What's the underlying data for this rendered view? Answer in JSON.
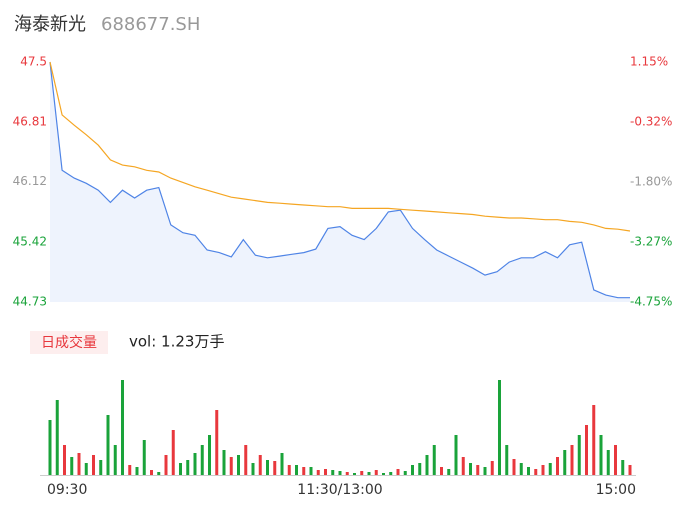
{
  "header": {
    "title": "海泰新光",
    "code": "688677.SH"
  },
  "chart_data": [
    {
      "type": "line",
      "xlim": [
        0,
        240
      ],
      "ylim": [
        44.73,
        47.5
      ],
      "y2lim": [
        -4.75,
        1.15
      ],
      "yticks": [
        47.5,
        46.81,
        46.12,
        45.42,
        44.73
      ],
      "ytick_colors": [
        "#e8383d",
        "#e8383d",
        "#999999",
        "#1aa33a",
        "#1aa33a"
      ],
      "y2ticks": [
        {
          "value": 1.15,
          "label": "1.15%"
        },
        {
          "value": -0.32,
          "label": "-0.32%"
        },
        {
          "value": -1.8,
          "label": "-1.80%"
        },
        {
          "value": -3.27,
          "label": "-3.27%"
        },
        {
          "value": -4.75,
          "label": "-4.75%"
        }
      ],
      "x": [
        0,
        5,
        10,
        15,
        20,
        25,
        30,
        35,
        40,
        45,
        50,
        55,
        60,
        65,
        70,
        75,
        80,
        85,
        90,
        95,
        100,
        105,
        110,
        115,
        120,
        125,
        130,
        135,
        140,
        145,
        150,
        155,
        160,
        165,
        170,
        175,
        180,
        185,
        190,
        195,
        200,
        205,
        210,
        215,
        220,
        225,
        230,
        235,
        240
      ],
      "series": [
        {
          "color": "#4f84e6",
          "fill": "#eef3fd",
          "values": [
            47.5,
            46.25,
            46.16,
            46.1,
            46.02,
            45.88,
            46.02,
            45.93,
            46.02,
            46.05,
            45.62,
            45.53,
            45.5,
            45.33,
            45.3,
            45.25,
            45.45,
            45.27,
            45.24,
            45.26,
            45.28,
            45.3,
            45.34,
            45.58,
            45.6,
            45.5,
            45.45,
            45.58,
            45.77,
            45.79,
            45.58,
            45.45,
            45.33,
            45.26,
            45.19,
            45.12,
            45.04,
            45.08,
            45.19,
            45.24,
            45.24,
            45.31,
            45.24,
            45.39,
            45.42,
            44.87,
            44.81,
            44.78,
            44.78
          ]
        },
        {
          "color": "#f5a623",
          "values": [
            47.5,
            46.89,
            46.77,
            46.66,
            46.54,
            46.37,
            46.31,
            46.29,
            46.25,
            46.23,
            46.16,
            46.11,
            46.06,
            46.02,
            45.98,
            45.94,
            45.92,
            45.9,
            45.88,
            45.87,
            45.86,
            45.85,
            45.84,
            45.83,
            45.83,
            45.81,
            45.81,
            45.81,
            45.81,
            45.8,
            45.79,
            45.78,
            45.77,
            45.76,
            45.75,
            45.74,
            45.72,
            45.71,
            45.7,
            45.7,
            45.69,
            45.68,
            45.68,
            45.66,
            45.65,
            45.62,
            45.58,
            45.57,
            45.55
          ]
        }
      ]
    },
    {
      "type": "bar",
      "tab": "日成交量",
      "label": "vol: 1.23万手",
      "xlim": [
        0,
        240
      ],
      "ylim": [
        0,
        100
      ],
      "xticks": [
        {
          "value": 0,
          "label": "09:30"
        },
        {
          "value": 120,
          "label": "11:30/13:00"
        },
        {
          "value": 240,
          "label": "15:00"
        }
      ],
      "x": [
        0,
        3,
        6,
        9,
        12,
        15,
        18,
        21,
        24,
        27,
        30,
        33,
        36,
        39,
        42,
        45,
        48,
        51,
        54,
        57,
        60,
        63,
        66,
        69,
        72,
        75,
        78,
        81,
        84,
        87,
        90,
        93,
        96,
        99,
        102,
        105,
        108,
        111,
        114,
        117,
        120,
        123,
        126,
        129,
        132,
        135,
        138,
        141,
        144,
        147,
        150,
        153,
        156,
        159,
        162,
        165,
        168,
        171,
        174,
        177,
        180,
        183,
        186,
        189,
        192,
        195,
        198,
        201,
        204,
        207,
        210,
        213,
        216,
        219,
        222,
        225,
        228,
        231,
        234,
        237,
        240
      ],
      "values": [
        55,
        75,
        30,
        18,
        22,
        12,
        20,
        15,
        60,
        30,
        95,
        10,
        8,
        35,
        5,
        3,
        20,
        45,
        12,
        15,
        22,
        30,
        40,
        65,
        25,
        18,
        20,
        30,
        12,
        20,
        15,
        14,
        22,
        10,
        10,
        8,
        8,
        5,
        6,
        5,
        4,
        3,
        2,
        4,
        3,
        5,
        2,
        3,
        6,
        4,
        10,
        12,
        20,
        30,
        8,
        6,
        40,
        18,
        12,
        10,
        8,
        14,
        95,
        30,
        16,
        12,
        8,
        6,
        10,
        12,
        18,
        25,
        30,
        40,
        50,
        70,
        40,
        25,
        30,
        15,
        10
      ],
      "colors": [
        "#1aa33a",
        "#1aa33a",
        "#e8383d",
        "#1aa33a",
        "#e8383d",
        "#1aa33a",
        "#e8383d",
        "#1aa33a",
        "#1aa33a",
        "#1aa33a",
        "#1aa33a",
        "#e8383d",
        "#1aa33a",
        "#1aa33a",
        "#e8383d",
        "#1aa33a",
        "#e8383d",
        "#e8383d",
        "#1aa33a",
        "#1aa33a",
        "#1aa33a",
        "#1aa33a",
        "#1aa33a",
        "#e8383d",
        "#1aa33a",
        "#e8383d",
        "#1aa33a",
        "#e8383d",
        "#1aa33a",
        "#e8383d",
        "#1aa33a",
        "#e8383d",
        "#1aa33a",
        "#e8383d",
        "#1aa33a",
        "#e8383d",
        "#1aa33a",
        "#e8383d",
        "#e8383d",
        "#1aa33a",
        "#1aa33a",
        "#e8383d",
        "#1aa33a",
        "#e8383d",
        "#1aa33a",
        "#e8383d",
        "#1aa33a",
        "#1aa33a",
        "#e8383d",
        "#1aa33a",
        "#1aa33a",
        "#1aa33a",
        "#1aa33a",
        "#1aa33a",
        "#e8383d",
        "#1aa33a",
        "#1aa33a",
        "#e8383d",
        "#1aa33a",
        "#e8383d",
        "#1aa33a",
        "#e8383d",
        "#1aa33a",
        "#1aa33a",
        "#e8383d",
        "#1aa33a",
        "#1aa33a",
        "#e8383d",
        "#e8383d",
        "#1aa33a",
        "#e8383d",
        "#1aa33a",
        "#e8383d",
        "#1aa33a",
        "#e8383d",
        "#e8383d",
        "#1aa33a",
        "#1aa33a",
        "#e8383d",
        "#1aa33a",
        "#e8383d"
      ]
    }
  ]
}
